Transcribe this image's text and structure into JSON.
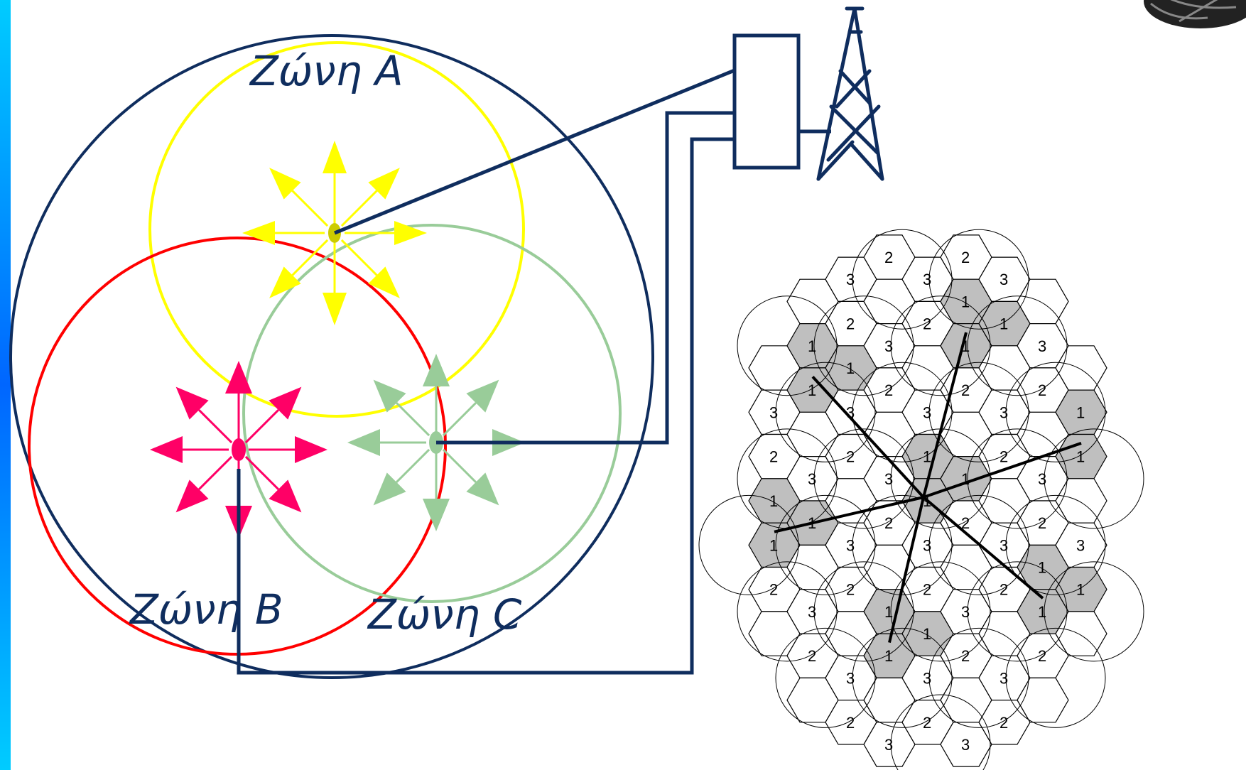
{
  "zones": [
    {
      "id": "a",
      "label": "Ζώνη A",
      "color": "#ffff00"
    },
    {
      "id": "b",
      "label": "Ζώνη B",
      "color": "#ff0000"
    },
    {
      "id": "c",
      "label": "Ζώνη C",
      "color": "#99cc99"
    }
  ],
  "colors": {
    "navy": "#0f2d5e",
    "yellow": "#ffff00",
    "pink": "#ff0066",
    "green": "#99cc99",
    "red": "#ff0000",
    "accent": "#00ccff",
    "accent_dark": "#0066ff",
    "shaded_cell": "#bfbfbf"
  },
  "icons": [
    "transmitter-box",
    "antenna-tower-icon",
    "logo-seal"
  ],
  "cell_labels": {
    "shaded": "1",
    "cluster_2": "2",
    "cluster_3": "3"
  }
}
